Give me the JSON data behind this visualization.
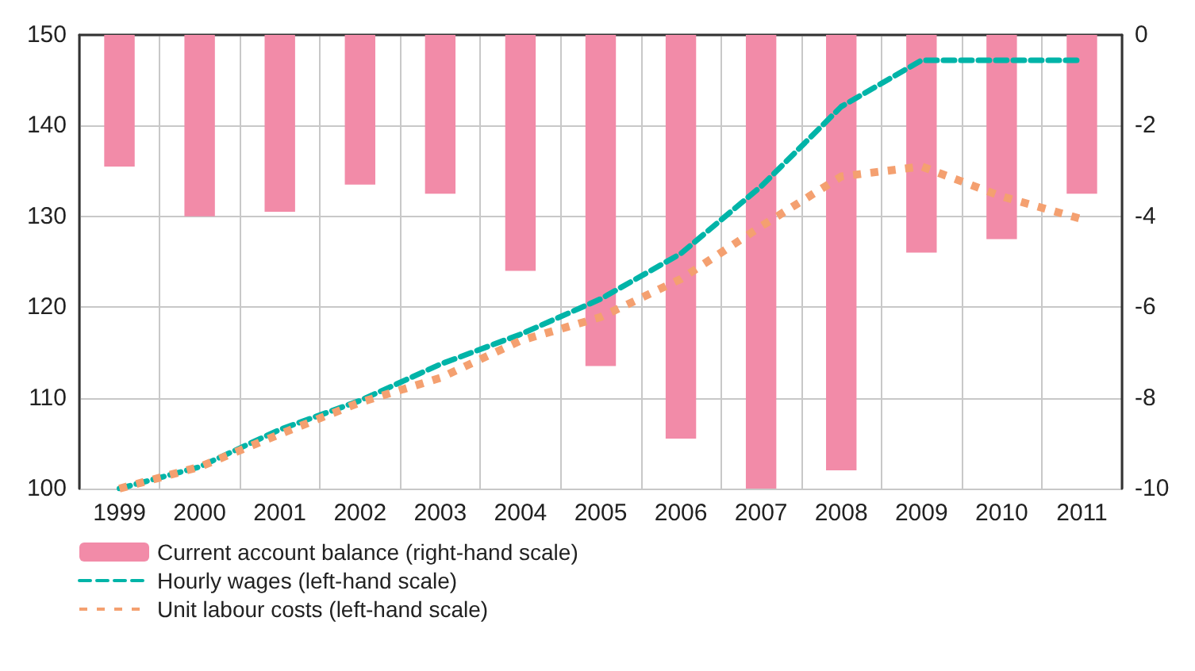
{
  "chart_data": {
    "type": "bar",
    "categories": [
      "1999",
      "2000",
      "2001",
      "2002",
      "2003",
      "2004",
      "2005",
      "2006",
      "2007",
      "2008",
      "2009",
      "2010",
      "2011"
    ],
    "series": [
      {
        "name": "Current account balance (right-hand scale)",
        "axis": "y2",
        "color": "#f28ba8",
        "values": [
          -2.9,
          -4.0,
          -3.9,
          -3.3,
          -3.5,
          -5.2,
          -7.3,
          -8.9,
          -10,
          -9.6,
          -4.8,
          -4.5,
          -3.5
        ]
      },
      {
        "name": "Hourly wages (left-hand scale)",
        "type": "line",
        "color": "#00b4a8",
        "line_style": "dashed",
        "values": [
          100,
          102.4,
          106.5,
          109.7,
          113.7,
          117,
          120.9,
          125.9,
          133.3,
          142.1,
          147.2,
          147.2,
          147.2
        ]
      },
      {
        "name": "Unit labour costs (left-hand scale)",
        "type": "line",
        "color": "#f4a070",
        "line_style": "dotted",
        "values": [
          100,
          102.4,
          106,
          109.5,
          112.2,
          116.3,
          118.9,
          123.1,
          128.9,
          134.4,
          135.5,
          132.2,
          129.7
        ]
      }
    ],
    "ylim": [
      100,
      150
    ],
    "yticks": [
      100,
      110,
      120,
      130,
      140,
      150
    ],
    "y2lim": [
      -10,
      0
    ],
    "y2ticks": [
      -10,
      -8,
      -6,
      -4,
      -2,
      0
    ],
    "grid": true,
    "legend": "bottom",
    "marker": "none"
  }
}
